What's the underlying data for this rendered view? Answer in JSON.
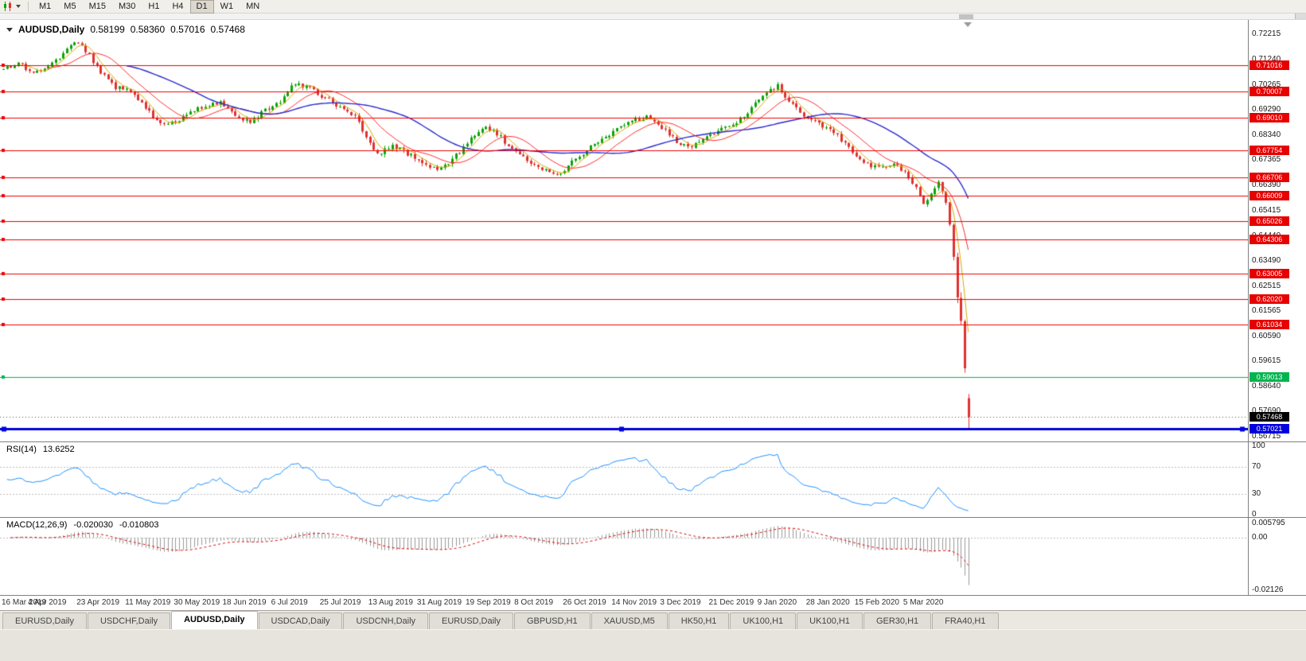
{
  "toolbar": {
    "timeframes": [
      "M1",
      "M5",
      "M15",
      "M30",
      "H1",
      "H4",
      "D1",
      "W1",
      "MN"
    ],
    "active_timeframe": "D1"
  },
  "chart_header": {
    "symbol": "AUDUSD,Daily",
    "open": "0.58199",
    "high": "0.58360",
    "low": "0.57016",
    "close": "0.57468"
  },
  "price_axis": {
    "max": 0.72215,
    "min": 0.56715,
    "ticks": [
      "0.72215",
      "0.71240",
      "0.70265",
      "0.69290",
      "0.68340",
      "0.67365",
      "0.66390",
      "0.65415",
      "0.64440",
      "0.63490",
      "0.62515",
      "0.61565",
      "0.60590",
      "0.59615",
      "0.58640",
      "0.57690",
      "0.56715"
    ]
  },
  "date_axis": {
    "candles_per_label": 13,
    "labels": [
      "16 Mar 2019",
      "4 Apr 2019",
      "23 Apr 2019",
      "11 May 2019",
      "30 May 2019",
      "18 Jun 2019",
      "6 Jul 2019",
      "25 Jul 2019",
      "13 Aug 2019",
      "31 Aug 2019",
      "19 Sep 2019",
      "8 Oct 2019",
      "26 Oct 2019",
      "14 Nov 2019",
      "3 Dec 2019",
      "21 Dec 2019",
      "9 Jan 2020",
      "28 Jan 2020",
      "15 Feb 2020",
      "5 Mar 2020"
    ]
  },
  "rsi_panel": {
    "title": "RSI(14)",
    "value": "13.6252",
    "axis": [
      {
        "label": "100",
        "value": 100
      },
      {
        "label": "70",
        "value": 70
      },
      {
        "label": "30",
        "value": 30
      },
      {
        "label": "0",
        "value": 0
      }
    ],
    "dash_levels": [
      70,
      30
    ]
  },
  "macd_panel": {
    "title": "MACD(12,26,9)",
    "main_value": "-0.020030",
    "signal_value": "-0.010803",
    "max": 0.005795,
    "min": -0.02126,
    "axis": [
      {
        "label": "0.005795",
        "value": 0.005795
      },
      {
        "label": "0.00",
        "value": 0
      },
      {
        "label": "-0.02126",
        "value": -0.02126
      }
    ]
  },
  "tabs": {
    "active_index": 2,
    "items": [
      "EURUSD,Daily",
      "USDCHF,Daily",
      "AUDUSD,Daily",
      "USDCAD,Daily",
      "USDCNH,Daily",
      "EURUSD,Daily",
      "GBPUSD,H1",
      "XAUUSD,M5",
      "HK50,H1",
      "UK100,H1",
      "UK100,H1",
      "GER30,H1",
      "FRA40,H1"
    ]
  },
  "colors": {
    "candle_up": "#0ca30a",
    "candle_down": "#e03131",
    "line_red": "#ee0000",
    "line_green": "#00b44e",
    "line_blue": "#0000dd",
    "current_price_bg": "#000000",
    "rsi_line": "#1e90ff",
    "level_dash": "#bcbcbc",
    "macd_hist": "#9a9a9a",
    "macd_signal": "#dd0000"
  },
  "chart_data": {
    "type": "candlestick",
    "symbol": "AUDUSD",
    "timeframe": "Daily",
    "visible_range": {
      "start": "16 Mar 2019",
      "end": "13 Mar 2020"
    },
    "candle_count": 259,
    "last_candle": {
      "o": 0.58199,
      "h": 0.5836,
      "l": 0.57016,
      "c": 0.57468
    },
    "close_keyframes": [
      [
        0,
        0.7085
      ],
      [
        4,
        0.7112
      ],
      [
        8,
        0.7068
      ],
      [
        12,
        0.7092
      ],
      [
        16,
        0.7148
      ],
      [
        19,
        0.7192
      ],
      [
        22,
        0.7158
      ],
      [
        26,
        0.7078
      ],
      [
        30,
        0.7018
      ],
      [
        34,
        0.7
      ],
      [
        38,
        0.6938
      ],
      [
        42,
        0.6872
      ],
      [
        46,
        0.6886
      ],
      [
        50,
        0.6916
      ],
      [
        54,
        0.6948
      ],
      [
        58,
        0.6958
      ],
      [
        62,
        0.6906
      ],
      [
        66,
        0.688
      ],
      [
        70,
        0.693
      ],
      [
        74,
        0.6966
      ],
      [
        78,
        0.7034
      ],
      [
        82,
        0.7012
      ],
      [
        86,
        0.6976
      ],
      [
        90,
        0.694
      ],
      [
        94,
        0.6906
      ],
      [
        97,
        0.6818
      ],
      [
        100,
        0.6762
      ],
      [
        104,
        0.6792
      ],
      [
        108,
        0.6762
      ],
      [
        112,
        0.673
      ],
      [
        116,
        0.6696
      ],
      [
        120,
        0.6736
      ],
      [
        124,
        0.6806
      ],
      [
        128,
        0.6864
      ],
      [
        132,
        0.684
      ],
      [
        136,
        0.6776
      ],
      [
        140,
        0.6736
      ],
      [
        144,
        0.6706
      ],
      [
        148,
        0.6676
      ],
      [
        152,
        0.673
      ],
      [
        156,
        0.6776
      ],
      [
        160,
        0.6816
      ],
      [
        164,
        0.6856
      ],
      [
        168,
        0.689
      ],
      [
        172,
        0.69
      ],
      [
        176,
        0.6862
      ],
      [
        180,
        0.6806
      ],
      [
        184,
        0.6792
      ],
      [
        188,
        0.683
      ],
      [
        192,
        0.6856
      ],
      [
        196,
        0.6886
      ],
      [
        200,
        0.6936
      ],
      [
        204,
        0.6996
      ],
      [
        207,
        0.7024
      ],
      [
        210,
        0.6966
      ],
      [
        214,
        0.6906
      ],
      [
        218,
        0.6876
      ],
      [
        222,
        0.6846
      ],
      [
        226,
        0.6782
      ],
      [
        230,
        0.6726
      ],
      [
        234,
        0.6706
      ],
      [
        238,
        0.6722
      ],
      [
        241,
        0.6686
      ],
      [
        244,
        0.6626
      ],
      [
        246,
        0.6562
      ],
      [
        248,
        0.6612
      ],
      [
        250,
        0.6646
      ],
      [
        252,
        0.659
      ],
      [
        253,
        0.6492
      ],
      [
        254,
        0.6352
      ],
      [
        255,
        0.6222
      ],
      [
        256,
        0.6122
      ],
      [
        257,
        0.5952
      ],
      [
        258,
        0.5747
      ]
    ],
    "moving_averages": [
      {
        "period": 5,
        "color": "#d8a800"
      },
      {
        "period": 13,
        "color": "#ff2a2a"
      },
      {
        "period": 34,
        "color": "#2a2ad0"
      }
    ],
    "levels": {
      "red_lines": [
        0.71016,
        0.70007,
        0.6901,
        0.67754,
        0.66706,
        0.66009,
        0.65026,
        0.64306,
        0.63005,
        0.6202,
        0.61034
      ],
      "red_labels": [
        "0.71016",
        "0.70007",
        "0.69010",
        "0.67754",
        "0.66706",
        "0.66009",
        "0.65026",
        "0.64306",
        "0.63005",
        "0.62020",
        "0.61034"
      ],
      "green_line": {
        "value": 0.59013,
        "label": "0.59013"
      },
      "blue_line": {
        "value": 0.57021,
        "label": "0.57021"
      },
      "current_price": {
        "value": 0.57468,
        "label": "0.57468"
      }
    },
    "indicators": [
      {
        "name": "RSI",
        "period": 14,
        "last_value": 13.6252
      },
      {
        "name": "MACD",
        "fast": 12,
        "slow": 26,
        "signal": 9,
        "last_main": -0.02003,
        "last_signal": -0.010803
      }
    ]
  }
}
